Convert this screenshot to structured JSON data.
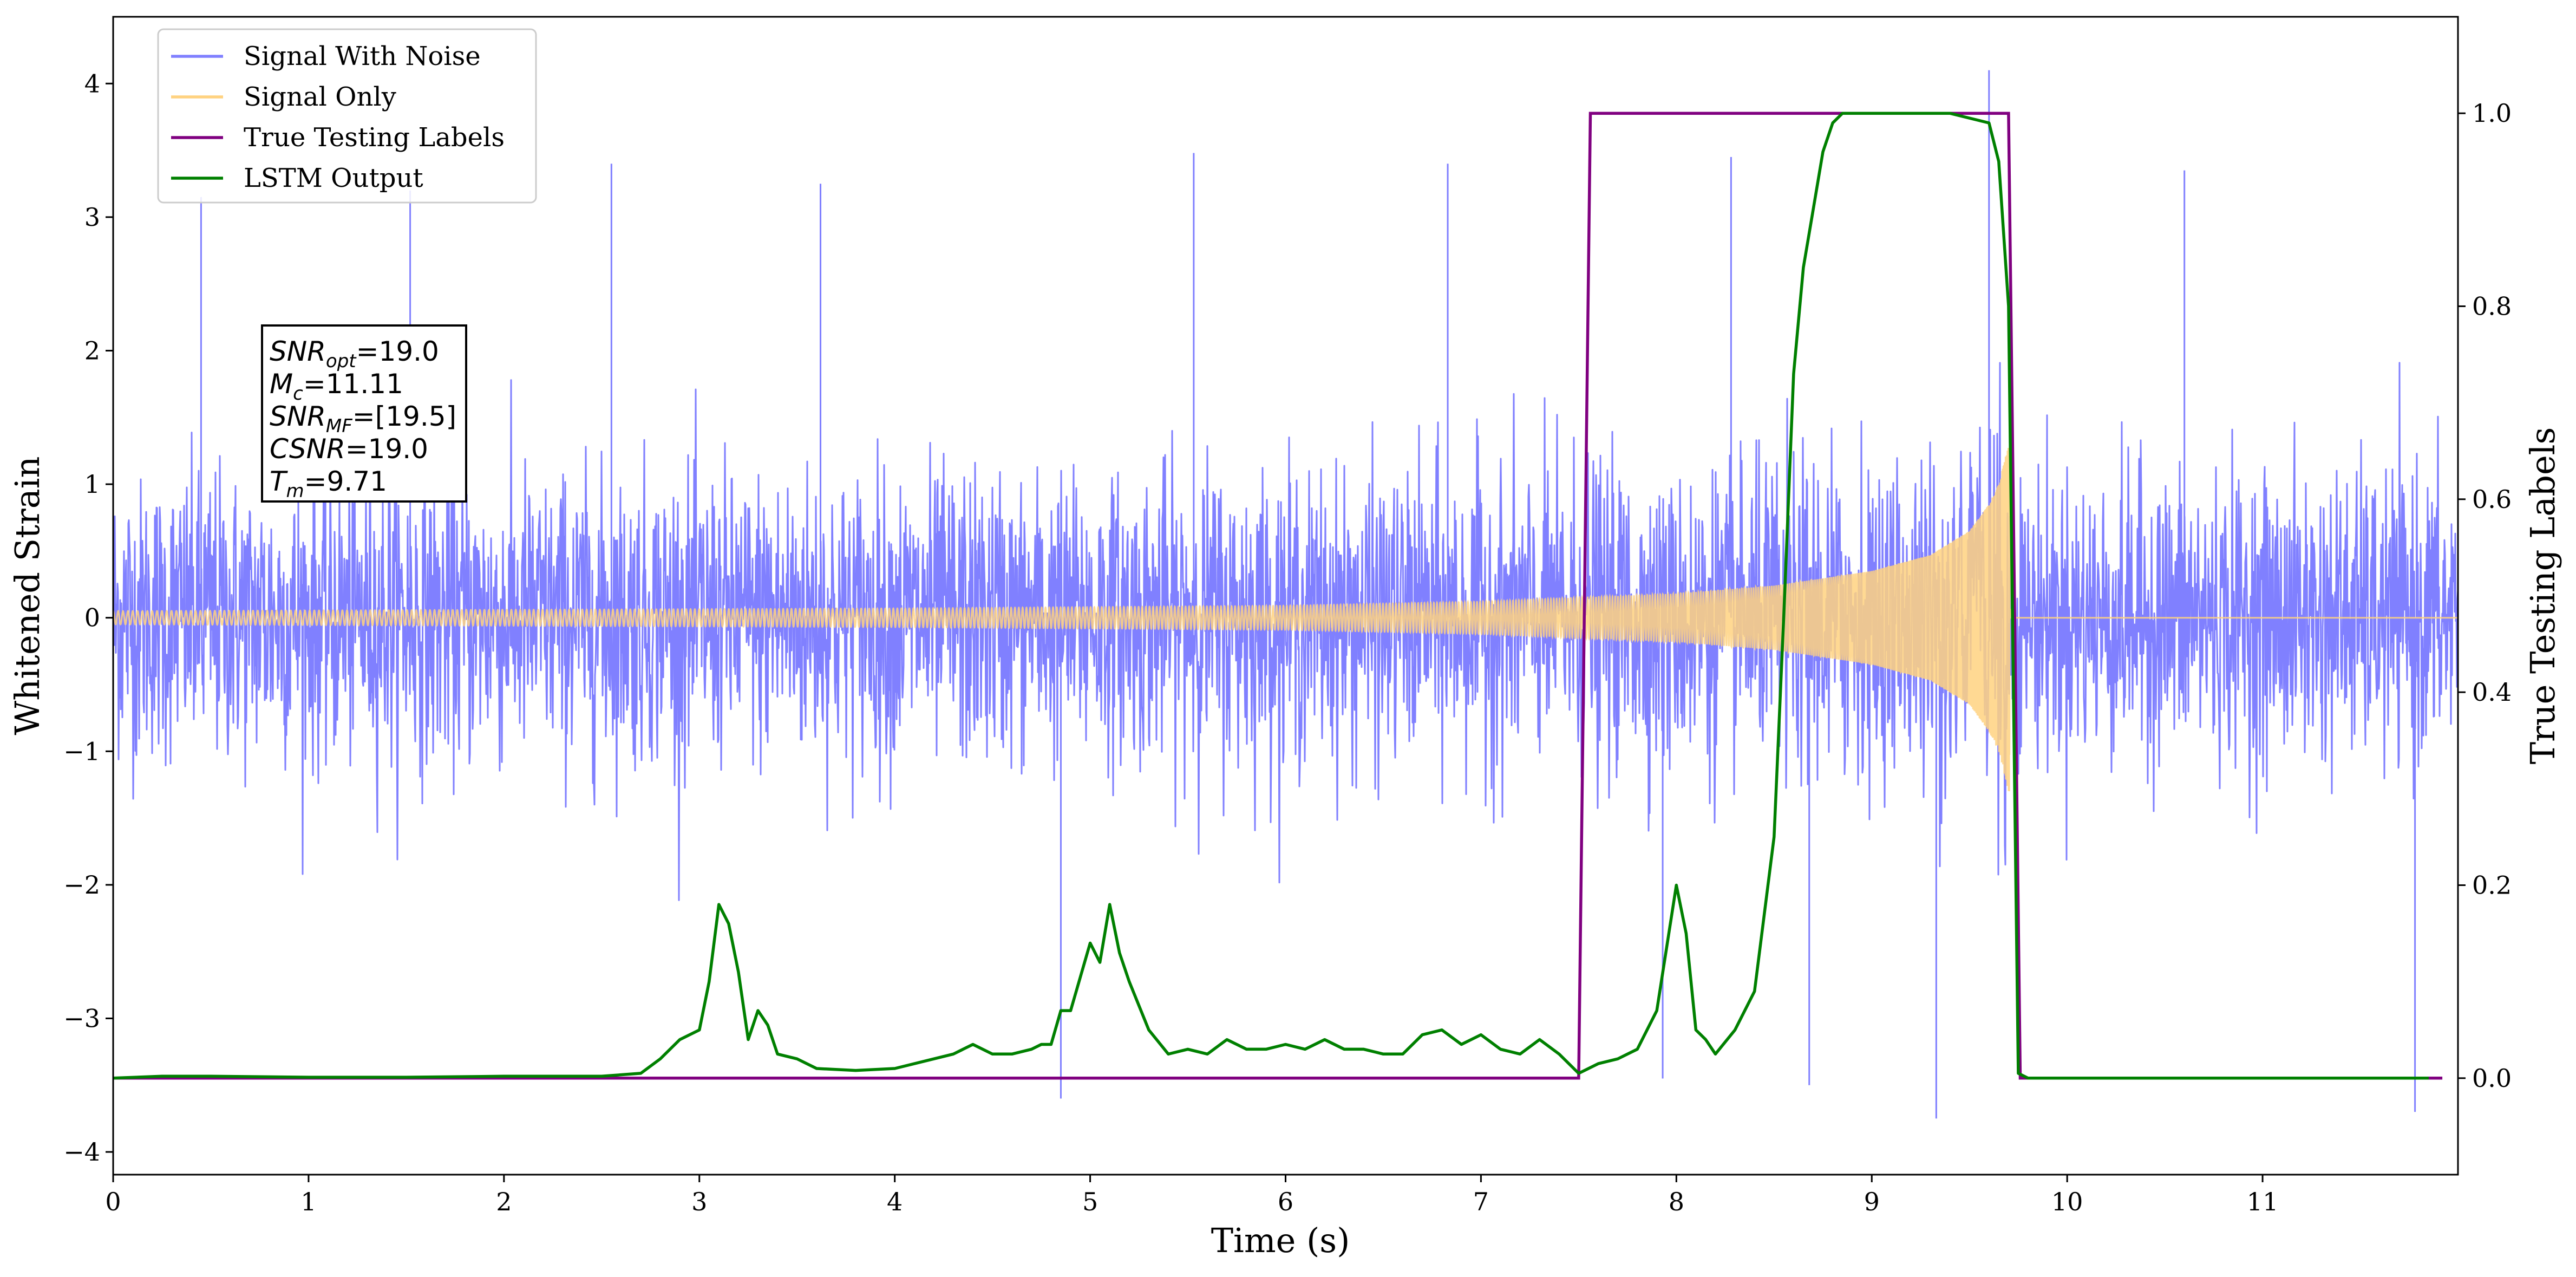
{
  "chart_data": {
    "type": "line",
    "xlabel": "Time (s)",
    "ylabel_left": "Whitened Strain",
    "ylabel_right": "True Testing Labels",
    "xlim": [
      0,
      12
    ],
    "ylim_left": [
      -4.17,
      4.5
    ],
    "ylim_right": [
      -0.1,
      1.1
    ],
    "x_ticks": [
      0,
      1,
      2,
      3,
      4,
      5,
      6,
      7,
      8,
      9,
      10,
      11
    ],
    "x_tick_labels": [
      "0",
      "1",
      "2",
      "3",
      "4",
      "5",
      "6",
      "7",
      "8",
      "9",
      "10",
      "11"
    ],
    "y_left_ticks": [
      -4,
      -3,
      -2,
      -1,
      0,
      1,
      2,
      3,
      4
    ],
    "y_left_tick_labels": [
      "−4",
      "−3",
      "−2",
      "−1",
      "0",
      "1",
      "2",
      "3",
      "4"
    ],
    "y_right_ticks": [
      0.0,
      0.2,
      0.4,
      0.6,
      0.8,
      1.0
    ],
    "y_right_tick_labels": [
      "0.0",
      "0.2",
      "0.4",
      "0.6",
      "0.8",
      "1.0"
    ],
    "grid": false,
    "legend_position": "top-left",
    "legend": [
      {
        "name": "Signal With Noise",
        "color": "#8080ff"
      },
      {
        "name": "Signal Only",
        "color": "#ffd280"
      },
      {
        "name": "True Testing  Labels",
        "color": "#800080"
      },
      {
        "name": "LSTM Output",
        "color": "#008000"
      }
    ],
    "annotation": {
      "position": "upper-left",
      "lines": [
        {
          "var": "SNR",
          "sub": "opt",
          "rest": "=19.0"
        },
        {
          "var": "M",
          "sub": "c",
          "rest": "=11.11"
        },
        {
          "var": "SNR",
          "sub": "MF",
          "rest": "=[19.5]"
        },
        {
          "var": "CSNR",
          "sub": "",
          "rest": "=19.0"
        },
        {
          "var": "T",
          "sub": "m",
          "rest": "=9.71"
        }
      ]
    },
    "series": [
      {
        "name": "Signal With Noise",
        "axis": "left",
        "color": "#8080ff",
        "description": "white noise spanning 0 to 12 s, amplitude mostly within about ±1.5, spikes reaching near ±3.7; max near 4.1 at t≈9.6",
        "x_range": [
          0,
          12
        ],
        "approx_envelope": [
          -1.5,
          1.5
        ],
        "approx_extremes": [
          -3.75,
          4.1
        ]
      },
      {
        "name": "Signal Only",
        "axis": "left",
        "color": "#ffd280",
        "description": "chirp signal growing from amplitude about 0.05 at t=0 to about 1.3 at t≈9.71, zero afterwards",
        "envelope": {
          "t": [
            0,
            2,
            4,
            6,
            7,
            8,
            8.5,
            9,
            9.3,
            9.5,
            9.6,
            9.65,
            9.7,
            9.71,
            9.72,
            12
          ],
          "amplitude": [
            0.05,
            0.06,
            0.07,
            0.09,
            0.12,
            0.18,
            0.24,
            0.35,
            0.47,
            0.65,
            0.85,
            1.0,
            1.3,
            1.3,
            0,
            0
          ]
        }
      },
      {
        "name": "True Testing  Labels",
        "axis": "right",
        "color": "#800080",
        "x": [
          0,
          7.5,
          7.56,
          9.7,
          9.76,
          11.92
        ],
        "y": [
          0,
          0,
          1,
          1,
          0,
          0
        ]
      },
      {
        "name": "LSTM Output",
        "axis": "right",
        "color": "#008000",
        "x": [
          0,
          0.25,
          0.5,
          1.0,
          1.5,
          2.0,
          2.5,
          2.7,
          2.8,
          2.9,
          3.0,
          3.05,
          3.1,
          3.15,
          3.2,
          3.25,
          3.3,
          3.35,
          3.4,
          3.5,
          3.6,
          3.8,
          4.0,
          4.2,
          4.3,
          4.4,
          4.5,
          4.6,
          4.7,
          4.75,
          4.8,
          4.85,
          4.9,
          5.0,
          5.05,
          5.1,
          5.15,
          5.2,
          5.3,
          5.4,
          5.5,
          5.6,
          5.7,
          5.8,
          5.9,
          6.0,
          6.1,
          6.2,
          6.3,
          6.4,
          6.5,
          6.6,
          6.7,
          6.8,
          6.9,
          7.0,
          7.1,
          7.2,
          7.3,
          7.4,
          7.5,
          7.6,
          7.7,
          7.8,
          7.9,
          8.0,
          8.05,
          8.1,
          8.15,
          8.2,
          8.3,
          8.4,
          8.5,
          8.55,
          8.6,
          8.65,
          8.7,
          8.75,
          8.8,
          8.85,
          8.9,
          9.0,
          9.2,
          9.4,
          9.6,
          9.65,
          9.7,
          9.75,
          9.8,
          10.0,
          11.0,
          11.85
        ],
        "y": [
          0,
          0.002,
          0.002,
          0.001,
          0.001,
          0.002,
          0.002,
          0.005,
          0.02,
          0.04,
          0.05,
          0.1,
          0.18,
          0.16,
          0.11,
          0.04,
          0.07,
          0.055,
          0.025,
          0.02,
          0.01,
          0.008,
          0.01,
          0.02,
          0.025,
          0.035,
          0.025,
          0.025,
          0.03,
          0.035,
          0.035,
          0.07,
          0.07,
          0.14,
          0.12,
          0.18,
          0.13,
          0.1,
          0.05,
          0.025,
          0.03,
          0.025,
          0.04,
          0.03,
          0.03,
          0.035,
          0.03,
          0.04,
          0.03,
          0.03,
          0.025,
          0.025,
          0.045,
          0.05,
          0.035,
          0.045,
          0.03,
          0.025,
          0.04,
          0.025,
          0.005,
          0.015,
          0.02,
          0.03,
          0.07,
          0.2,
          0.15,
          0.05,
          0.04,
          0.025,
          0.05,
          0.09,
          0.25,
          0.48,
          0.73,
          0.84,
          0.9,
          0.96,
          0.99,
          1.0,
          1.0,
          1.0,
          1.0,
          1.0,
          0.99,
          0.95,
          0.8,
          0.005,
          0.0,
          0.0,
          0.0,
          0.0
        ]
      }
    ]
  }
}
